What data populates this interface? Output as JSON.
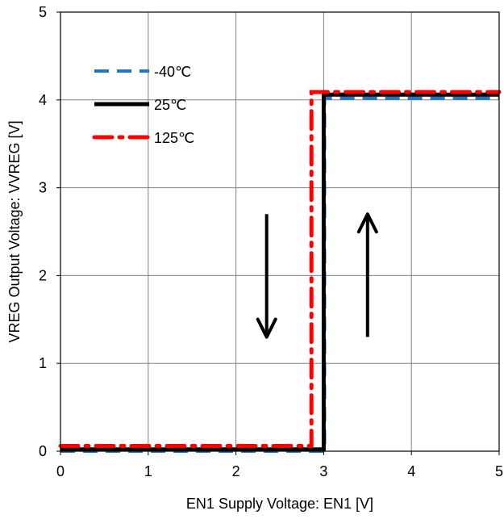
{
  "chart_data": {
    "type": "line",
    "title": "",
    "xlabel": "EN1 Supply Voltage: EN1 [V]",
    "ylabel": "VREG Output Voltage: VVREG [V]",
    "xlim": [
      0,
      5
    ],
    "ylim": [
      0,
      5
    ],
    "xticks": [
      0,
      1,
      2,
      3,
      4,
      5
    ],
    "yticks": [
      0,
      1,
      2,
      3,
      4,
      5
    ],
    "xtick_labels": [
      "0",
      "1",
      "2",
      "3",
      "4",
      "5"
    ],
    "ytick_labels": [
      "0",
      "1",
      "2",
      "3",
      "4",
      "5"
    ],
    "grid": true,
    "legend_position": "top-left",
    "series": [
      {
        "name": "-40℃",
        "color": "#1f77c4",
        "dash": "dash",
        "x": [
          0,
          2.99,
          2.99,
          3.01,
          3.01,
          5
        ],
        "y": [
          0.0,
          0.0,
          0.0,
          0.0,
          4.02,
          4.02
        ]
      },
      {
        "name": "25℃",
        "color": "#000000",
        "dash": "solid",
        "x": [
          0,
          2.98,
          2.98,
          3.0,
          3.0,
          5
        ],
        "y": [
          0.02,
          0.02,
          0.02,
          0.02,
          4.06,
          4.06
        ]
      },
      {
        "name": "125℃",
        "color": "#ff0000",
        "dash": "dashdot",
        "x": [
          0,
          2.86,
          2.86,
          3.02,
          3.02,
          5
        ],
        "y": [
          0.06,
          0.06,
          4.09,
          4.09,
          4.09,
          4.09
        ]
      }
    ],
    "annotations": [
      {
        "type": "arrow",
        "direction": "down",
        "x": 2.35,
        "y_from": 2.7,
        "y_to": 1.3
      },
      {
        "type": "arrow",
        "direction": "up",
        "x": 3.5,
        "y_from": 1.3,
        "y_to": 2.7
      }
    ]
  }
}
